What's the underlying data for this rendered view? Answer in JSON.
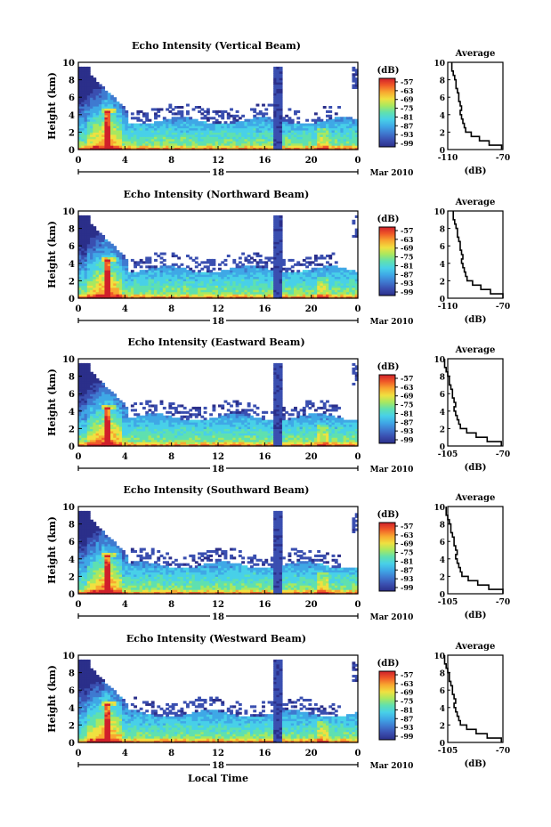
{
  "figure": {
    "xlabel": "Local Time",
    "date_label": "Mar 2010",
    "day_label": "18"
  },
  "colorbar": {
    "unit": "(dB)",
    "ticks": [
      "-57",
      "-63",
      "-69",
      "-75",
      "-81",
      "-87",
      "-93",
      "-99"
    ]
  },
  "chart_data": [
    {
      "type": "heatmap",
      "title": "Echo Intensity (Vertical Beam)",
      "ylabel": "Height (km)",
      "xlim": [
        0,
        24
      ],
      "ylim": [
        0,
        10
      ],
      "xticks": [
        "0",
        "4",
        "8",
        "12",
        "16",
        "20",
        "0"
      ],
      "yticks": [
        "0",
        "2",
        "4",
        "6",
        "8",
        "10"
      ],
      "zlim": [
        -99,
        -57
      ],
      "avg": {
        "title": "Average",
        "xlabel": "(dB)",
        "xticks": [
          "-110",
          "-70"
        ],
        "xlim": [
          -110,
          -70
        ]
      }
    },
    {
      "type": "heatmap",
      "title": "Echo Intensity (Northward Beam)",
      "ylabel": "Height (km)",
      "xlim": [
        0,
        24
      ],
      "ylim": [
        0,
        10
      ],
      "xticks": [
        "0",
        "4",
        "8",
        "12",
        "16",
        "20",
        "0"
      ],
      "yticks": [
        "0",
        "2",
        "4",
        "6",
        "8",
        "10"
      ],
      "zlim": [
        -99,
        -57
      ],
      "avg": {
        "title": "Average",
        "xlabel": "(dB)",
        "xticks": [
          "-110",
          "-70"
        ],
        "xlim": [
          -110,
          -70
        ]
      }
    },
    {
      "type": "heatmap",
      "title": "Echo Intensity (Eastward Beam)",
      "ylabel": "Height (km)",
      "xlim": [
        0,
        24
      ],
      "ylim": [
        0,
        10
      ],
      "xticks": [
        "0",
        "4",
        "8",
        "12",
        "16",
        "20",
        "0"
      ],
      "yticks": [
        "0",
        "2",
        "4",
        "6",
        "8",
        "10"
      ],
      "zlim": [
        -99,
        -57
      ],
      "avg": {
        "title": "Average",
        "xlabel": "(dB)",
        "xticks": [
          "-105",
          "-70"
        ],
        "xlim": [
          -105,
          -70
        ]
      }
    },
    {
      "type": "heatmap",
      "title": "Echo Intensity (Southward Beam)",
      "ylabel": "Height (km)",
      "xlim": [
        0,
        24
      ],
      "ylim": [
        0,
        10
      ],
      "xticks": [
        "0",
        "4",
        "8",
        "12",
        "16",
        "20",
        "0"
      ],
      "yticks": [
        "0",
        "2",
        "4",
        "6",
        "8",
        "10"
      ],
      "zlim": [
        -99,
        -57
      ],
      "avg": {
        "title": "Average",
        "xlabel": "(dB)",
        "xticks": [
          "-105",
          "-70"
        ],
        "xlim": [
          -105,
          -70
        ]
      }
    },
    {
      "type": "heatmap",
      "title": "Echo Intensity (Westward Beam)",
      "ylabel": "Height (km)",
      "xlim": [
        0,
        24
      ],
      "ylim": [
        0,
        10
      ],
      "xticks": [
        "0",
        "4",
        "8",
        "12",
        "16",
        "20",
        "0"
      ],
      "yticks": [
        "0",
        "2",
        "4",
        "6",
        "8",
        "10"
      ],
      "zlim": [
        -99,
        -57
      ],
      "avg": {
        "title": "Average",
        "xlabel": "(dB)",
        "xticks": [
          "-105",
          "-70"
        ],
        "xlim": [
          -105,
          -70
        ]
      }
    }
  ],
  "avg_profile": {
    "height_km": [
      0,
      0.5,
      1,
      1.5,
      2,
      2.5,
      3,
      3.5,
      4,
      4.5,
      5,
      5.5,
      6,
      6.5,
      7,
      7.5,
      8,
      8.5,
      9,
      9.5
    ],
    "db": [
      -71,
      -80,
      -87,
      -93,
      -97,
      -98,
      -99,
      -100,
      -101,
      -100,
      -101,
      -102,
      -102,
      -103,
      -104,
      -104,
      -105,
      -106,
      -107,
      -107
    ]
  },
  "colors": {
    "scale": [
      "#2b2f8a",
      "#3a4fb0",
      "#3f7ad0",
      "#3fa8e6",
      "#48d0e8",
      "#5fe0b0",
      "#a8e860",
      "#f0e040",
      "#f8a830",
      "#f05a28",
      "#d0202a"
    ]
  }
}
